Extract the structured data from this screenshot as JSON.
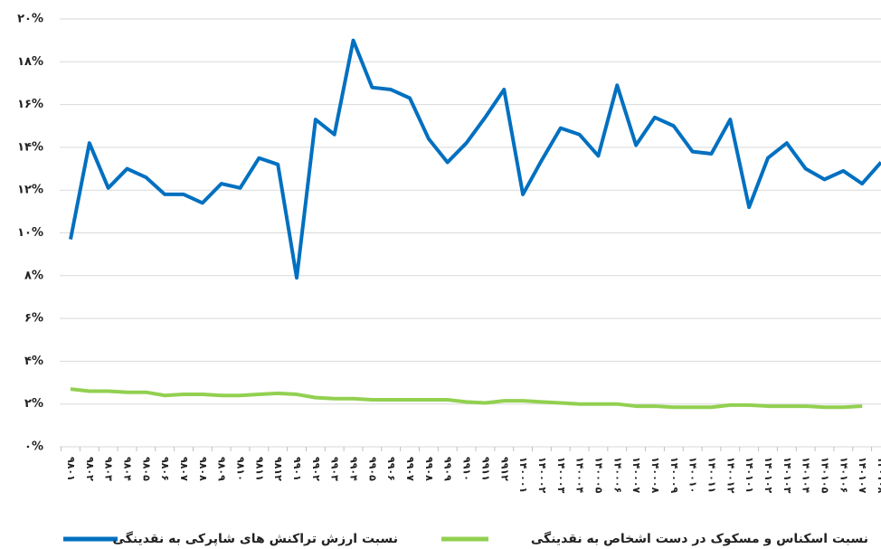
{
  "chart_data": {
    "type": "line",
    "categories": [
      "۹۸۰۱",
      "۹۸۰۲",
      "۹۸۰۳",
      "۹۸۰۴",
      "۹۸۰۵",
      "۹۸۰۶",
      "۹۸۰۷",
      "۹۸۰۸",
      "۹۸۰۹",
      "۹۸۱۰",
      "۹۸۱۱",
      "۹۸۱۲",
      "۹۹۰۱",
      "۹۹۰۲",
      "۹۹۰۳",
      "۹۹۰۴",
      "۹۹۰۵",
      "۹۹۰۶",
      "۹۹۰۷",
      "۹۹۰۸",
      "۹۹۰۹",
      "۹۹۱۰",
      "۹۹۱۱",
      "۹۹۱۲",
      "۱۴۰۰۰۱",
      "۱۴۰۰۰۲",
      "۱۴۰۰۰۳",
      "۱۴۰۰۰۴",
      "۱۴۰۰۰۵",
      "۱۴۰۰۰۶",
      "۱۴۰۰۰۷",
      "۱۴۰۰۰۸",
      "۱۴۰۰۰۹",
      "۱۴۰۰۱۰",
      "۱۴۰۰۱۱",
      "۱۴۰۰۱۲",
      "۱۴۰۱۰۱",
      "۱۴۰۱۰۲",
      "۱۴۰۱۰۳",
      "۱۴۰۱۰۴",
      "۱۴۰۱۰۵",
      "۱۴۰۱۰۶",
      "۱۴۰۱۰۷",
      "۱۴۰۱۰۸"
    ],
    "series": [
      {
        "name": "نسبت ارزش تراکنش های شاپرکی به نقدینگی",
        "color": "#0070c0",
        "values": [
          9.7,
          14.2,
          12.1,
          13.0,
          12.6,
          11.8,
          11.8,
          11.4,
          12.3,
          12.1,
          13.5,
          13.2,
          7.9,
          15.3,
          14.6,
          19.0,
          16.8,
          16.7,
          16.3,
          14.4,
          13.3,
          14.2,
          15.4,
          16.7,
          11.8,
          13.4,
          14.9,
          14.6,
          13.6,
          16.9,
          14.1,
          15.4,
          15.0,
          13.8,
          13.7,
          15.3,
          11.2,
          13.5,
          14.2,
          13.0,
          12.5,
          12.9,
          12.3,
          13.3
        ]
      },
      {
        "name": "نسبت اسکناس و مسکوک در دست اشخاص به نقدینگی",
        "color": "#92d050",
        "values": [
          2.7,
          2.6,
          2.6,
          2.55,
          2.55,
          2.4,
          2.45,
          2.45,
          2.4,
          2.4,
          2.45,
          2.5,
          2.45,
          2.3,
          2.25,
          2.25,
          2.2,
          2.2,
          2.2,
          2.2,
          2.2,
          2.1,
          2.05,
          2.15,
          2.15,
          2.1,
          2.05,
          2.0,
          2.0,
          2.0,
          1.9,
          1.9,
          1.85,
          1.85,
          1.85,
          1.95,
          1.95,
          1.9,
          1.9,
          1.9,
          1.85,
          1.85,
          1.9,
          null
        ]
      }
    ],
    "ylim": [
      0,
      20
    ],
    "yticks": [
      {
        "value": 0,
        "label": "۰%"
      },
      {
        "value": 2,
        "label": "۲%"
      },
      {
        "value": 4,
        "label": "۴%"
      },
      {
        "value": 6,
        "label": "۶%"
      },
      {
        "value": 8,
        "label": "۸%"
      },
      {
        "value": 10,
        "label": "۱۰%"
      },
      {
        "value": 12,
        "label": "۱۲%"
      },
      {
        "value": 14,
        "label": "۱۴%"
      },
      {
        "value": 16,
        "label": "۱۶%"
      },
      {
        "value": 18,
        "label": "۱۸%"
      },
      {
        "value": 20,
        "label": "۲۰%"
      }
    ],
    "grid": true,
    "legend": "bottom"
  }
}
